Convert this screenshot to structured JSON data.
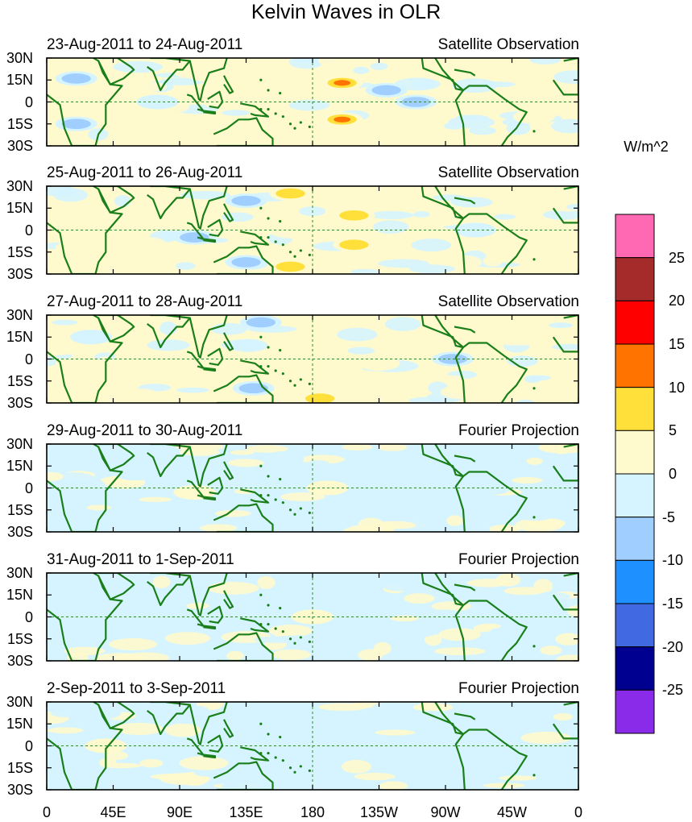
{
  "chart_data": {
    "type": "heatmap",
    "title": "Kelvin Waves in OLR",
    "units_label": "W/m^2",
    "x_tick_labels": [
      "0",
      "45E",
      "90E",
      "135E",
      "180",
      "135W",
      "90W",
      "45W",
      "0"
    ],
    "x_tick_values_deg": [
      0,
      45,
      90,
      135,
      180,
      225,
      270,
      315,
      360
    ],
    "y_tick_labels": [
      "30N",
      "15N",
      "0",
      "15S",
      "30S"
    ],
    "y_tick_values_deg": [
      30,
      15,
      0,
      -15,
      -30
    ],
    "xlim": [
      0,
      360
    ],
    "ylim": [
      -30,
      30
    ],
    "colorbar": {
      "levels": [
        -25,
        -20,
        -15,
        -10,
        -5,
        0,
        5,
        10,
        15,
        20,
        25
      ],
      "labels": [
        "25",
        "20",
        "15",
        "10",
        "5",
        "0",
        "-5",
        "-10",
        "-15",
        "-20",
        "-25"
      ],
      "colors": [
        "#8b2bea",
        "#000090",
        "#4169e1",
        "#1e90ff",
        "#a0cfff",
        "#d5f4ff",
        "#fffacd",
        "#ffe03a",
        "#ff7400",
        "#ff0000",
        "#a52a2a",
        "#ff69b4"
      ]
    },
    "panels": [
      {
        "date_range": "23-Aug-2011 to 24-Aug-2011",
        "source": "Satellite Observation",
        "anomalies": [
          {
            "lon": 200,
            "lat": 13,
            "value": 14
          },
          {
            "lon": 200,
            "lat": -12,
            "value": 14
          },
          {
            "lon": 120,
            "lat": 0,
            "value": 7
          },
          {
            "lon": 165,
            "lat": -23,
            "value": 7
          },
          {
            "lon": 330,
            "lat": -10,
            "value": 7
          },
          {
            "lon": 250,
            "lat": 0,
            "value": -8
          },
          {
            "lon": 20,
            "lat": 16,
            "value": -12
          },
          {
            "lon": 20,
            "lat": -15,
            "value": -12
          },
          {
            "lon": 75,
            "lat": 0,
            "value": -7
          },
          {
            "lon": 230,
            "lat": 8,
            "value": -8
          }
        ]
      },
      {
        "date_range": "25-Aug-2011 to 26-Aug-2011",
        "source": "Satellite Observation",
        "anomalies": [
          {
            "lon": 208,
            "lat": 10,
            "value": 12
          },
          {
            "lon": 208,
            "lat": -10,
            "value": 12
          },
          {
            "lon": 165,
            "lat": 25,
            "value": 12
          },
          {
            "lon": 165,
            "lat": -25,
            "value": 12
          },
          {
            "lon": 140,
            "lat": 0,
            "value": 7
          },
          {
            "lon": 20,
            "lat": -12,
            "value": 7
          },
          {
            "lon": 135,
            "lat": 20,
            "value": -12
          },
          {
            "lon": 135,
            "lat": -22,
            "value": -12
          },
          {
            "lon": 100,
            "lat": -5,
            "value": -8
          },
          {
            "lon": 290,
            "lat": 0,
            "value": -7
          }
        ]
      },
      {
        "date_range": "27-Aug-2011 to 28-Aug-2011",
        "source": "Satellite Observation",
        "anomalies": [
          {
            "lon": 60,
            "lat": 0,
            "value": 7
          },
          {
            "lon": 95,
            "lat": -8,
            "value": 7
          },
          {
            "lon": 185,
            "lat": -27,
            "value": 8
          },
          {
            "lon": 225,
            "lat": -3,
            "value": 7
          },
          {
            "lon": 310,
            "lat": -25,
            "value": 7
          },
          {
            "lon": 140,
            "lat": -20,
            "value": -10
          },
          {
            "lon": 145,
            "lat": 25,
            "value": -8
          },
          {
            "lon": 275,
            "lat": 0,
            "value": -9
          },
          {
            "lon": 30,
            "lat": 15,
            "value": -6
          },
          {
            "lon": 350,
            "lat": 0,
            "value": 7
          }
        ]
      },
      {
        "date_range": "29-Aug-2011 to 30-Aug-2011",
        "source": "Fourier Projection",
        "anomalies": [
          {
            "lon": 100,
            "lat": -3,
            "value": 7
          },
          {
            "lon": 190,
            "lat": 0,
            "value": 4
          },
          {
            "lon": 60,
            "lat": 10,
            "value": -6
          },
          {
            "lon": 160,
            "lat": 20,
            "value": -6
          },
          {
            "lon": 300,
            "lat": 0,
            "value": -5
          }
        ]
      },
      {
        "date_range": "31-Aug-2011 to 1-Sep-2011",
        "source": "Fourier Projection",
        "anomalies": [
          {
            "lon": 180,
            "lat": 0,
            "value": 3
          },
          {
            "lon": 80,
            "lat": 0,
            "value": -4
          },
          {
            "lon": 270,
            "lat": 0,
            "value": -4
          }
        ]
      },
      {
        "date_range": "2-Sep-2011 to 3-Sep-2011",
        "source": "Fourier Projection",
        "anomalies": [
          {
            "lon": 40,
            "lat": 0,
            "value": 3
          },
          {
            "lon": 120,
            "lat": 0,
            "value": -4
          },
          {
            "lon": 250,
            "lat": 0,
            "value": -3
          }
        ]
      }
    ]
  }
}
